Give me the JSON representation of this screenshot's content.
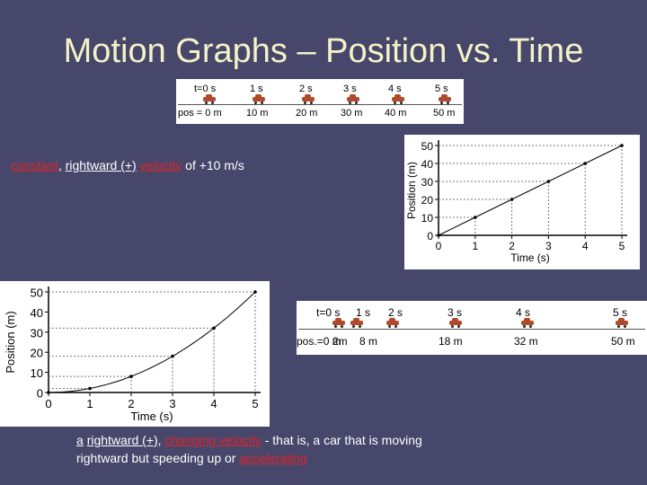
{
  "title": "Motion Graphs – Position vs. Time",
  "strip1": {
    "times": [
      "t=0 s",
      "1 s",
      "2 s",
      "3 s",
      "4 s",
      "5 s"
    ],
    "positions": [
      "pos = 0 m",
      "10 m",
      "20 m",
      "30 m",
      "40 m",
      "50 m"
    ]
  },
  "strip2": {
    "times": [
      "t=0 s",
      "1 s",
      "2 s",
      "3 s",
      "4 s",
      "5 s"
    ],
    "positions": [
      "pos.=0 m",
      "2m",
      "8 m",
      "18 m",
      "32 m",
      "50 m"
    ]
  },
  "text1": {
    "constant": "constant",
    "comma": ",",
    "rightward": "rightward (+)",
    "velocity": "velocity",
    "rest": "of +10 m/s"
  },
  "text2": {
    "a": "a",
    "rightward": "rightward (+),",
    "changing": "changing velocity",
    "rest1": "- that is, a car that is moving",
    "rest2": "rightward but speeding up or",
    "accelerating": "accelerating"
  },
  "chart_data": [
    {
      "type": "line",
      "xlabel": "Time (s)",
      "ylabel": "Position (m)",
      "x": [
        0,
        1,
        2,
        3,
        4,
        5
      ],
      "y": [
        0,
        10,
        20,
        30,
        40,
        50
      ],
      "xlim": [
        0,
        5
      ],
      "ylim": [
        0,
        50
      ],
      "xticks": [
        "0",
        "1",
        "2",
        "3",
        "4",
        "5"
      ],
      "yticks": [
        "0",
        "10",
        "20",
        "30",
        "40",
        "50"
      ]
    },
    {
      "type": "line",
      "xlabel": "Time (s)",
      "ylabel": "Position (m)",
      "x": [
        0,
        1,
        2,
        3,
        4,
        5
      ],
      "y": [
        0,
        2,
        8,
        18,
        32,
        50
      ],
      "xlim": [
        0,
        5
      ],
      "ylim": [
        0,
        50
      ],
      "xticks": [
        "0",
        "1",
        "2",
        "3",
        "4",
        "5"
      ],
      "yticks": [
        "0",
        "10",
        "20",
        "30",
        "40",
        "50"
      ]
    }
  ]
}
